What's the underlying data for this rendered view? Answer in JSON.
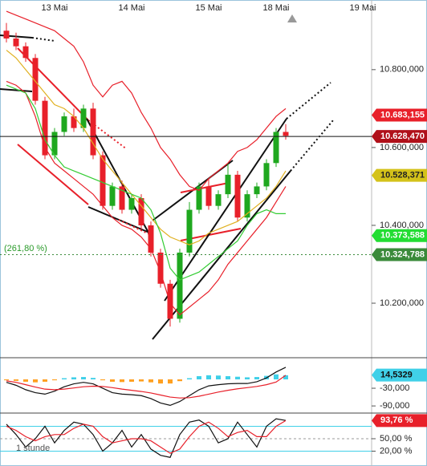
{
  "chart_data": [
    {
      "type": "candlestick",
      "categories": [
        null,
        null,
        null,
        null,
        null,
        "13 Mai",
        null,
        null,
        null,
        null,
        null,
        null,
        null,
        "14 Mai",
        null,
        null,
        null,
        null,
        null,
        null,
        null,
        "15 Mai",
        null,
        null,
        null,
        null,
        null,
        null,
        "18 Mai",
        null,
        null,
        null,
        null,
        null,
        null,
        null,
        null,
        "19 Mai"
      ],
      "open": [
        10900,
        10880,
        10860,
        10830,
        10720,
        10580,
        10640,
        10680,
        10650,
        10700,
        10580,
        10450,
        10500,
        10440,
        10470,
        10400,
        10330,
        10250,
        10160,
        10330,
        10440,
        10500,
        10450,
        10480,
        10530,
        10420,
        10480,
        10500,
        10560,
        10640,
        null,
        null,
        null,
        null,
        null,
        null,
        null,
        null
      ],
      "high": [
        10920,
        10895,
        10870,
        10840,
        10730,
        10650,
        10690,
        10700,
        10710,
        10715,
        10590,
        10510,
        10515,
        10480,
        10480,
        10410,
        10340,
        10260,
        10340,
        10460,
        10510,
        10520,
        10490,
        10560,
        10540,
        10490,
        10510,
        10570,
        10650,
        10660,
        null,
        null,
        null,
        null,
        null,
        null,
        null,
        null
      ],
      "low": [
        10870,
        10850,
        10820,
        10710,
        10570,
        10570,
        10630,
        10640,
        10640,
        10570,
        10440,
        10440,
        10430,
        10430,
        10390,
        10320,
        10240,
        10140,
        10150,
        10320,
        10430,
        10440,
        10440,
        10470,
        10410,
        10410,
        10470,
        10490,
        10550,
        10620,
        null,
        null,
        null,
        null,
        null,
        null,
        null,
        null
      ],
      "close": [
        10880,
        10860,
        10830,
        10720,
        10580,
        10640,
        10680,
        10650,
        10700,
        10580,
        10450,
        10500,
        10440,
        10470,
        10400,
        10330,
        10250,
        10160,
        10330,
        10440,
        10500,
        10450,
        10480,
        10530,
        10420,
        10480,
        10500,
        10560,
        10640,
        10630,
        null,
        null,
        null,
        null,
        null,
        null,
        null,
        null
      ],
      "up_color": "#1fa81f",
      "down_color": "#e8202a",
      "series": [
        {
          "color": "#e8202a",
          "values": [
            10950,
            10940,
            10930,
            10920,
            10910,
            10900,
            10880,
            10860,
            10820,
            10760,
            10730,
            10760,
            10770,
            10740,
            10690,
            10650,
            10600,
            10570,
            10530,
            10500,
            10490,
            10520,
            10540,
            10560,
            10590,
            10600,
            10620,
            10650,
            10680,
            10700,
            null,
            null,
            null,
            null,
            null,
            null,
            null,
            null
          ]
        },
        {
          "color": "#e8202a",
          "values": [
            10770,
            10760,
            10740,
            10680,
            10600,
            10560,
            10540,
            10520,
            10500,
            10480,
            10450,
            10420,
            10400,
            10390,
            10370,
            10340,
            10280,
            10200,
            10170,
            10190,
            10210,
            10230,
            10260,
            10300,
            10330,
            10360,
            10390,
            10420,
            10460,
            10500,
            null,
            null,
            null,
            null,
            null,
            null,
            null,
            null
          ]
        },
        {
          "color": "#e0b020",
          "values": [
            10850,
            10830,
            10800,
            10770,
            10740,
            10710,
            10700,
            10680,
            10650,
            10610,
            10570,
            10540,
            10510,
            10480,
            10450,
            10420,
            10390,
            10370,
            10360,
            10350,
            10360,
            10380,
            10390,
            10400,
            10410,
            10430,
            10450,
            10470,
            10500,
            10540,
            null,
            null,
            null,
            null,
            null,
            null,
            null,
            null
          ]
        },
        {
          "color": "#33cc33",
          "values": [
            10760,
            10750,
            10740,
            10700,
            10620,
            10580,
            10550,
            10540,
            10530,
            10520,
            10510,
            10500,
            10490,
            10480,
            10470,
            10440,
            10380,
            10290,
            10260,
            10270,
            10280,
            10300,
            10320,
            10340,
            10360,
            10400,
            10430,
            10440,
            10430,
            10430,
            null,
            null,
            null,
            null,
            null,
            null,
            null,
            null
          ]
        }
      ],
      "ylim": [
        10062,
        10948
      ],
      "yticks": [
        {
          "value": 10800,
          "label": "10.800,000"
        },
        {
          "value": 10600,
          "label": "10.600,000"
        },
        {
          "value": 10400,
          "label": "10.400,000"
        },
        {
          "value": 10200,
          "label": "10.200,000"
        }
      ],
      "price_tags": [
        {
          "value": 10683.155,
          "label": "10.683,155",
          "color": "#e8202a",
          "text_color": "#ffffff"
        },
        {
          "value": 10628.47,
          "label": "10.628,470",
          "color": "#b0101a",
          "text_color": "#ffffff",
          "line": "solid"
        },
        {
          "value": 10528.371,
          "label": "10.528,371",
          "color": "#d4c21a",
          "text_color": "#222222"
        },
        {
          "value": 10373.588,
          "label": "10.373,588",
          "color": "#22dd33",
          "text_color": "#ffffff"
        },
        {
          "value": 10324.788,
          "label": "10.324,788",
          "color": "#3a8a3a",
          "text_color": "#ffffff",
          "line": "dotted"
        }
      ],
      "annotation": "(261,80 %)"
    },
    {
      "type": "macd",
      "series": [
        {
          "color": "#111111",
          "values": [
            -10,
            -20,
            -35,
            -45,
            -50,
            -40,
            -25,
            -15,
            -10,
            -15,
            -30,
            -45,
            -50,
            -52,
            -55,
            -65,
            -80,
            -88,
            -75,
            -55,
            -35,
            -22,
            -18,
            -15,
            -14,
            -14,
            -8,
            5,
            25,
            41
          ]
        },
        {
          "color": "#e8202a",
          "values": [
            -5,
            -10,
            -18,
            -26,
            -33,
            -35,
            -33,
            -29,
            -25,
            -23,
            -24,
            -28,
            -33,
            -37,
            -41,
            -46,
            -53,
            -60,
            -63,
            -62,
            -57,
            -50,
            -43,
            -37,
            -32,
            -28,
            -24,
            -18,
            -9,
            14
          ]
        }
      ],
      "histogram": {
        "values": [
          -3,
          -5,
          -8,
          -10,
          -8,
          -3,
          4,
          7,
          8,
          5,
          -3,
          -8,
          -9,
          -8,
          -7,
          -10,
          -14,
          -14,
          -6,
          4,
          11,
          14,
          13,
          11,
          9,
          7,
          8,
          12,
          17,
          14
        ],
        "up_color": "#40d0e8",
        "down_color": "#ffa020"
      },
      "ylim": [
        -106,
        68
      ],
      "yticks": [
        {
          "value": -30,
          "label": "-30,000"
        },
        {
          "value": -90,
          "label": "-90,000"
        }
      ],
      "price_tags": [
        {
          "value": 14.5329,
          "label": "14,5329",
          "color": "#40d0e8",
          "text_color": "#111111"
        }
      ]
    },
    {
      "type": "stochastic",
      "series": [
        {
          "color": "#111111",
          "values": [
            85,
            60,
            30,
            50,
            80,
            40,
            70,
            90,
            85,
            60,
            20,
            40,
            70,
            30,
            60,
            25,
            10,
            5,
            60,
            90,
            95,
            80,
            40,
            50,
            90,
            60,
            30,
            80,
            98,
            94
          ]
        },
        {
          "color": "#e8202a",
          "values": [
            80,
            70,
            55,
            45,
            55,
            60,
            60,
            75,
            85,
            80,
            55,
            40,
            45,
            50,
            50,
            45,
            30,
            15,
            25,
            55,
            80,
            90,
            75,
            55,
            65,
            70,
            55,
            55,
            80,
            93.76
          ]
        }
      ],
      "levels": [
        80,
        20
      ],
      "ylim": [
        -8,
        106
      ],
      "yticks": [
        {
          "value": 50,
          "label": "50,00 %"
        },
        {
          "value": 20,
          "label": "20,00 %"
        }
      ],
      "price_tags": [
        {
          "value": 93.76,
          "label": "93,76 %",
          "color": "#e8202a",
          "text_color": "#ffffff"
        }
      ],
      "footnote": "1 stunde"
    }
  ]
}
